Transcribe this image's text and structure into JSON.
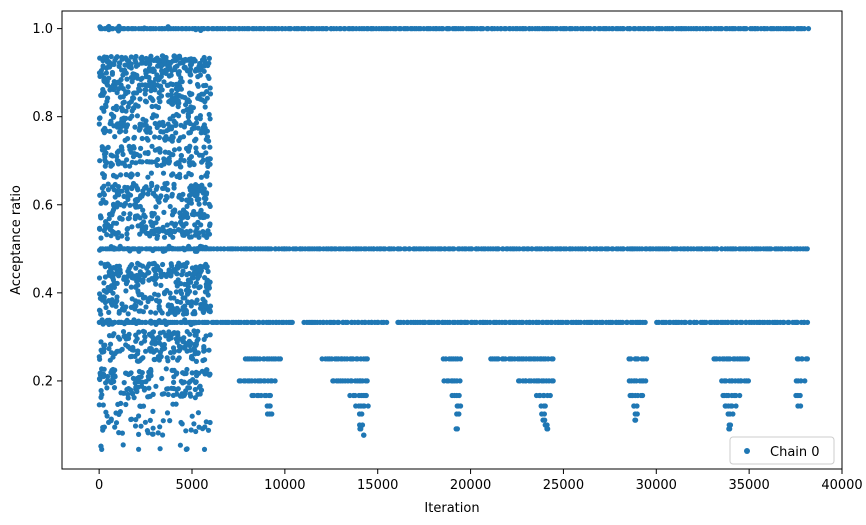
{
  "chart_data": {
    "type": "scatter",
    "title": "",
    "xlabel": "Iteration",
    "ylabel": "Acceptance ratio",
    "xlim": [
      -2000,
      40000
    ],
    "ylim": [
      0.0,
      1.04
    ],
    "x_ticks": [
      0,
      5000,
      10000,
      15000,
      20000,
      25000,
      30000,
      35000,
      40000
    ],
    "y_ticks": [
      0.2,
      0.4,
      0.6,
      0.8,
      1.0
    ],
    "x_tick_labels": [
      "0",
      "5000",
      "10000",
      "15000",
      "20000",
      "25000",
      "30000",
      "35000",
      "40000"
    ],
    "y_tick_labels": [
      "0.2",
      "0.4",
      "0.6",
      "0.8",
      "1.0"
    ],
    "grid": false,
    "legend": {
      "position": "bottom-right",
      "entries": [
        "Chain 0"
      ]
    },
    "series": [
      {
        "name": "Chain 0",
        "color": "#1f77b4",
        "marker": "circle",
        "x_range": [
          0,
          38200
        ],
        "bands": [
          {
            "y": 1.0,
            "x": [
              [
                0,
                6000
              ],
              [
                6000,
                38200
              ]
            ]
          },
          {
            "y": 0.5,
            "x": [
              [
                0,
                38200
              ]
            ]
          },
          {
            "y": 0.333,
            "x": [
              [
                0,
                10500
              ],
              [
                11000,
                15500
              ],
              [
                16000,
                29500
              ],
              [
                30000,
                38200
              ]
            ]
          },
          {
            "y": 0.25,
            "x": [
              [
                7800,
                9800
              ],
              [
                12000,
                14500
              ],
              [
                18500,
                19500
              ],
              [
                21000,
                24500
              ],
              [
                28500,
                29500
              ],
              [
                33000,
                35000
              ],
              [
                37500,
                38200
              ]
            ]
          },
          {
            "y": 0.2,
            "x": [
              [
                7500,
                9500
              ],
              [
                12500,
                14500
              ],
              [
                18500,
                19500
              ],
              [
                22500,
                24500
              ],
              [
                28500,
                29500
              ],
              [
                33500,
                35000
              ],
              [
                37500,
                38000
              ]
            ]
          },
          {
            "y": 0.167,
            "x": [
              [
                8200,
                9300
              ],
              [
                13500,
                14500
              ],
              [
                19000,
                19500
              ],
              [
                23500,
                24300
              ],
              [
                28500,
                29300
              ],
              [
                33500,
                34500
              ],
              [
                37500,
                37800
              ]
            ]
          },
          {
            "y": 0.143,
            "x": [
              [
                9000,
                9300
              ],
              [
                13800,
                14500
              ],
              [
                19200,
                19500
              ],
              [
                23800,
                24100
              ],
              [
                28700,
                29000
              ],
              [
                33600,
                34300
              ],
              [
                37600,
                37800
              ]
            ]
          },
          {
            "y": 0.125,
            "x": [
              [
                9000,
                9300
              ],
              [
                14000,
                14200
              ],
              [
                19200,
                19400
              ],
              [
                23800,
                24000
              ],
              [
                28800,
                29000
              ],
              [
                33800,
                34200
              ]
            ]
          },
          {
            "y": 0.111,
            "x": [
              [
                23900,
                24000
              ],
              [
                28800,
                28900
              ]
            ]
          },
          {
            "y": 0.1,
            "x": [
              [
                14000,
                14200
              ],
              [
                24000,
                24200
              ],
              [
                33900,
                34000
              ]
            ]
          },
          {
            "y": 0.091,
            "x": [
              [
                14000,
                14100
              ],
              [
                19200,
                19300
              ],
              [
                24100,
                24200
              ],
              [
                33900,
                34000
              ]
            ]
          },
          {
            "y": 0.077,
            "x": [
              [
                14200,
                14300
              ]
            ]
          }
        ],
        "early_phase": {
          "x": [
            0,
            6000
          ],
          "levels": [
            0.05,
            0.083,
            0.091,
            0.1,
            0.111,
            0.125,
            0.143,
            0.167,
            0.182,
            0.2,
            0.214,
            0.222,
            0.25,
            0.267,
            0.273,
            0.286,
            0.3,
            0.308,
            0.333,
            0.357,
            0.364,
            0.375,
            0.385,
            0.4,
            0.417,
            0.429,
            0.438,
            0.444,
            0.455,
            0.462,
            0.5,
            0.529,
            0.538,
            0.545,
            0.556,
            0.571,
            0.583,
            0.6,
            0.615,
            0.625,
            0.636,
            0.643,
            0.667,
            0.692,
            0.7,
            0.714,
            0.727,
            0.75,
            0.769,
            0.778,
            0.786,
            0.8,
            0.818,
            0.833,
            0.846,
            0.857,
            0.867,
            0.875,
            0.889,
            0.9,
            0.909,
            0.917,
            0.923,
            0.929,
            0.933,
            1.0
          ]
        }
      }
    ]
  }
}
